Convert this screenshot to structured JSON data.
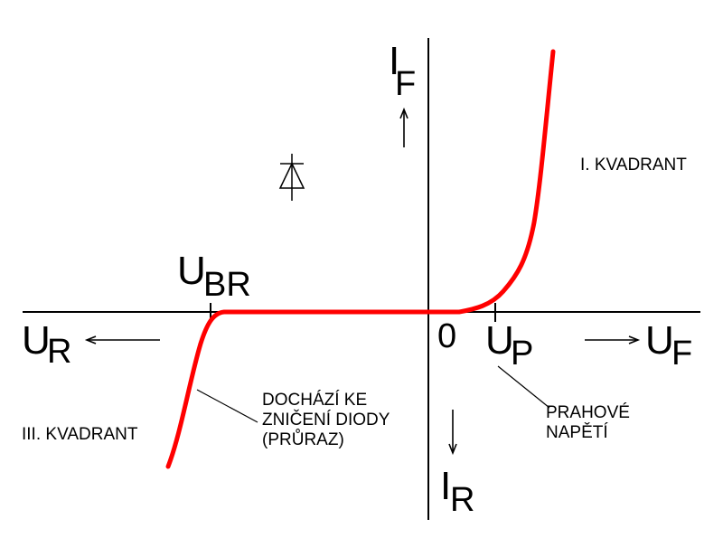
{
  "axes": {
    "y_pos_main": "I",
    "y_pos_sub": "F",
    "y_neg_main": "I",
    "y_neg_sub": "R",
    "x_pos_main": "U",
    "x_pos_sub": "F",
    "x_neg_main": "U",
    "x_neg_sub": "R",
    "origin": "0"
  },
  "points": {
    "breakdown_main": "U",
    "breakdown_sub": "BR",
    "threshold_main": "U",
    "threshold_sub": "P"
  },
  "quadrants": {
    "first": "I. KVADRANT",
    "third": "III. KVADRANT"
  },
  "annotations": {
    "breakdown_line1": "DOCHÁZÍ KE",
    "breakdown_line2": "ZNIČENÍ DIODY",
    "breakdown_line3": "(PRŮRAZ)",
    "threshold_line1": "PRAHOVÉ",
    "threshold_line2": "NAPĚTÍ"
  },
  "colors": {
    "curve": "#ff0000",
    "ink": "#000000",
    "background": "#ffffff"
  },
  "icons": {
    "diode": "diode-symbol-icon"
  }
}
